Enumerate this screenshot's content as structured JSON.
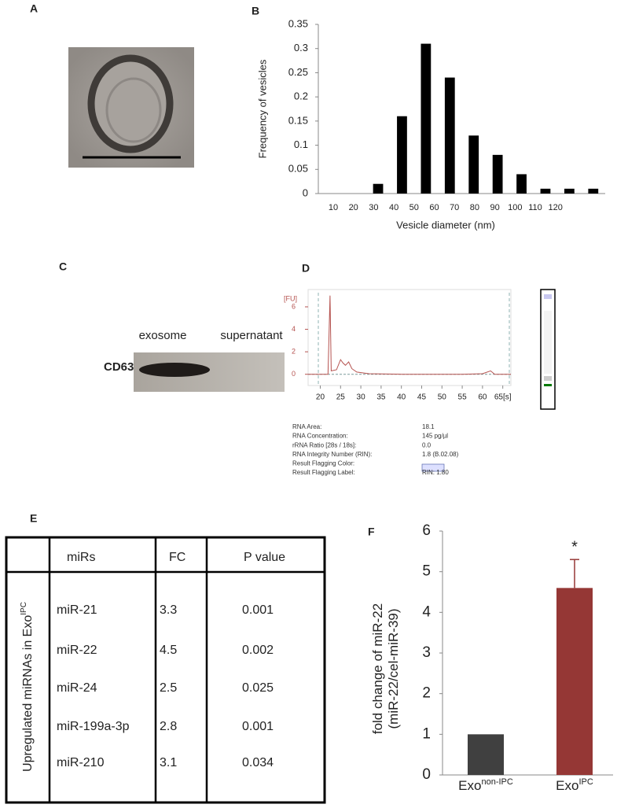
{
  "panel_labels": [
    "A",
    "B",
    "C",
    "D",
    "E",
    "F"
  ],
  "chart_data": [
    {
      "type": "bar",
      "x_label": "Vesicle diameter (nm)",
      "y_label": "Frequency of vesicles",
      "categories": [
        "10",
        "20",
        "30",
        "40",
        "50",
        "60",
        "70",
        "80",
        "90",
        "100",
        "110",
        "120"
      ],
      "values": [
        0,
        0,
        0.02,
        0.16,
        0.31,
        0.24,
        0.12,
        0.08,
        0.04,
        0.01,
        0.01,
        0.01
      ],
      "color": "#000000",
      "ylim": [
        0,
        0.35
      ],
      "yticks": [
        0,
        0.05,
        0.1,
        0.15,
        0.2,
        0.25,
        0.3,
        0.35
      ]
    },
    {
      "type": "line",
      "y_label": "[FU]",
      "x": [
        17,
        21.9,
        22.2,
        22.4,
        22.7,
        24,
        25,
        25.6,
        26.2,
        27,
        27.8,
        29,
        32,
        40,
        55,
        60,
        62,
        63,
        67
      ],
      "series": [
        {
          "values": [
            0,
            0,
            4,
            7,
            0.3,
            0.4,
            1.3,
            1.0,
            0.8,
            1.1,
            0.5,
            0.2,
            0.05,
            0,
            0,
            0.05,
            0.3,
            0,
            0
          ],
          "color": "#b5524f"
        }
      ],
      "xlim": [
        17,
        67
      ],
      "xticks": [
        20,
        25,
        30,
        35,
        40,
        45,
        50,
        55,
        60,
        {
          "value": 65,
          "label": "65[s]"
        }
      ],
      "ylim": [
        -1,
        7.4
      ],
      "yticks": [
        0,
        2,
        4,
        6
      ]
    },
    {
      "type": "bar",
      "y_label": [
        "fold change of miR-22",
        "(miR-22/cel-miR-39)"
      ],
      "categories": [
        [
          "Exo",
          "non-IPC"
        ],
        [
          "Exo",
          "IPC"
        ]
      ],
      "values": [
        1,
        4.6
      ],
      "errors": [
        null,
        0.7
      ],
      "annotations": [
        null,
        "*"
      ],
      "colors": [
        "#404040",
        "#953735"
      ],
      "ylim": [
        0,
        6
      ],
      "yticks": [
        0,
        1,
        2,
        3,
        4,
        5,
        6
      ]
    }
  ],
  "blot": {
    "lanes": [
      "exosome",
      "supernatant"
    ],
    "marker": "CD63"
  },
  "bioanalyzer": {
    "rows": [
      [
        "RNA Area:",
        "18.1"
      ],
      [
        "RNA Concentration:",
        "145 pg/µl"
      ],
      [
        "rRNA Ratio [28s / 18s]:",
        "0.0"
      ],
      [
        "RNA Integrity Number (RIN):",
        "1.8   (B.02.08)"
      ],
      [
        "Result Flagging Color:",
        ""
      ],
      [
        "Result Flagging Label:",
        "RIN: 1.80"
      ]
    ]
  },
  "table": {
    "header": [
      "miRs",
      "FC",
      "P value"
    ],
    "group_label": [
      "Upregulated miRNAs in Exo",
      "IPC"
    ],
    "rows": [
      [
        "miR-21",
        "3.3",
        "0.001"
      ],
      [
        "miR-22",
        "4.5",
        "0.002"
      ],
      [
        "miR-24",
        "2.5",
        "0.025"
      ],
      [
        "miR-199a-3p",
        "2.8",
        "0.001"
      ],
      [
        "miR-210",
        "3.1",
        "0.034"
      ]
    ]
  }
}
